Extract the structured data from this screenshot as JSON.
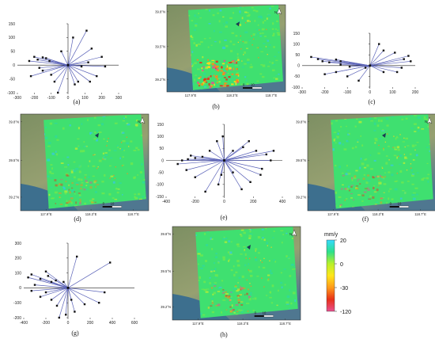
{
  "colors": {
    "line": "#5a62b8",
    "point": "#111111",
    "axis": "#222222"
  },
  "captions": {
    "a": "(a)",
    "b": "(b)",
    "c": "(c)",
    "d": "(d)",
    "e": "(e)",
    "f": "(f)",
    "g": "(g)",
    "h": "(h)"
  },
  "map_labels": {
    "lat_top": "39.8°N",
    "lat_mid": "39.5°N",
    "lat_bot": "39.2°N",
    "lon_left": "117.9°E",
    "lon_mid": "118.3°E",
    "lon_right": "118.7°E",
    "north_arrow": "N",
    "scalebar_zero": "0",
    "scalebar_ten": "10"
  },
  "colorbar": {
    "unit": "mm/y",
    "tick_labels": [
      "20",
      "0",
      "-30",
      "-120"
    ],
    "stops": [
      "#35d9ff",
      "#2de08a",
      "#b8f02a",
      "#ffe61a",
      "#ff9a1a",
      "#e83018",
      "#e85090"
    ]
  },
  "chart_data": [
    {
      "id": "a",
      "type": "scatter",
      "xlim": [
        -300,
        300
      ],
      "ylim": [
        -100,
        150
      ],
      "xticks": [
        "-300",
        "-200",
        "-100",
        "0",
        "100",
        "200",
        "300"
      ],
      "yticks": [
        "-100",
        "-50",
        "0",
        "50",
        "100",
        "150"
      ],
      "center": [
        0,
        0
      ],
      "points": [
        [
          -230,
          15
        ],
        [
          -200,
          30
        ],
        [
          -180,
          20
        ],
        [
          -150,
          28
        ],
        [
          -130,
          25
        ],
        [
          -110,
          15
        ],
        [
          -220,
          -40
        ],
        [
          -150,
          -20
        ],
        [
          -100,
          -35
        ],
        [
          -80,
          -60
        ],
        [
          -60,
          -100
        ],
        [
          -40,
          50
        ],
        [
          30,
          100
        ],
        [
          110,
          125
        ],
        [
          140,
          60
        ],
        [
          120,
          10
        ],
        [
          200,
          30
        ],
        [
          220,
          -5
        ],
        [
          170,
          -40
        ],
        [
          130,
          -60
        ],
        [
          60,
          -60
        ],
        [
          40,
          -70
        ],
        [
          80,
          -5
        ],
        [
          -170,
          -10
        ]
      ]
    },
    {
      "id": "c",
      "type": "scatter",
      "xlim": [
        -300,
        200
      ],
      "ylim": [
        -100,
        150
      ],
      "xticks": [
        "-300",
        "-200",
        "-100",
        "0",
        "100",
        "200"
      ],
      "yticks": [
        "-100",
        "-50",
        "0",
        "50",
        "100",
        "150"
      ],
      "center": [
        0,
        0
      ],
      "points": [
        [
          -260,
          40
        ],
        [
          -230,
          30
        ],
        [
          -210,
          20
        ],
        [
          -180,
          15
        ],
        [
          -150,
          28
        ],
        [
          -130,
          20
        ],
        [
          -200,
          -40
        ],
        [
          -150,
          -30
        ],
        [
          -100,
          -50
        ],
        [
          -50,
          -70
        ],
        [
          40,
          100
        ],
        [
          60,
          70
        ],
        [
          110,
          60
        ],
        [
          150,
          30
        ],
        [
          170,
          45
        ],
        [
          180,
          20
        ],
        [
          140,
          -10
        ],
        [
          120,
          -30
        ],
        [
          60,
          -30
        ],
        [
          -20,
          -10
        ],
        [
          -90,
          -5
        ],
        [
          -130,
          5
        ]
      ]
    },
    {
      "id": "e",
      "type": "scatter",
      "xlim": [
        -400,
        400
      ],
      "ylim": [
        -150,
        150
      ],
      "xticks": [
        "-400",
        "-200",
        "0",
        "200",
        "400"
      ],
      "yticks": [
        "-150",
        "-100",
        "-50",
        "0",
        "50",
        "100",
        "150"
      ],
      "center": [
        0,
        0
      ],
      "points": [
        [
          -10,
          100
        ],
        [
          -50,
          80
        ],
        [
          -100,
          40
        ],
        [
          -200,
          10
        ],
        [
          -250,
          5
        ],
        [
          -290,
          0
        ],
        [
          -320,
          -15
        ],
        [
          -260,
          -40
        ],
        [
          -200,
          -70
        ],
        [
          -130,
          -130
        ],
        [
          -40,
          -100
        ],
        [
          -20,
          -60
        ],
        [
          60,
          40
        ],
        [
          130,
          55
        ],
        [
          170,
          80
        ],
        [
          220,
          40
        ],
        [
          290,
          25
        ],
        [
          340,
          40
        ],
        [
          320,
          0
        ],
        [
          260,
          -35
        ],
        [
          250,
          -60
        ],
        [
          180,
          -90
        ],
        [
          120,
          -120
        ],
        [
          60,
          -50
        ],
        [
          -150,
          15
        ],
        [
          -230,
          20
        ]
      ]
    },
    {
      "id": "g",
      "type": "scatter",
      "xlim": [
        -400,
        600
      ],
      "ylim": [
        -200,
        300
      ],
      "xticks": [
        "-400",
        "-200",
        "0",
        "200",
        "400",
        "600"
      ],
      "yticks": [
        "-200",
        "-100",
        "0",
        "100",
        "200",
        "300"
      ],
      "center": [
        0,
        0
      ],
      "points": [
        [
          -360,
          70
        ],
        [
          -330,
          90
        ],
        [
          -300,
          20
        ],
        [
          -250,
          60
        ],
        [
          -200,
          110
        ],
        [
          -180,
          80
        ],
        [
          -150,
          40
        ],
        [
          -200,
          -30
        ],
        [
          -250,
          -60
        ],
        [
          -150,
          -80
        ],
        [
          -100,
          -120
        ],
        [
          -80,
          -200
        ],
        [
          -40,
          40
        ],
        [
          80,
          210
        ],
        [
          380,
          170
        ],
        [
          330,
          -30
        ],
        [
          280,
          -100
        ],
        [
          150,
          -110
        ],
        [
          60,
          -160
        ],
        [
          30,
          -80
        ],
        [
          -20,
          -180
        ],
        [
          -110,
          50
        ],
        [
          -330,
          -20
        ]
      ]
    }
  ]
}
